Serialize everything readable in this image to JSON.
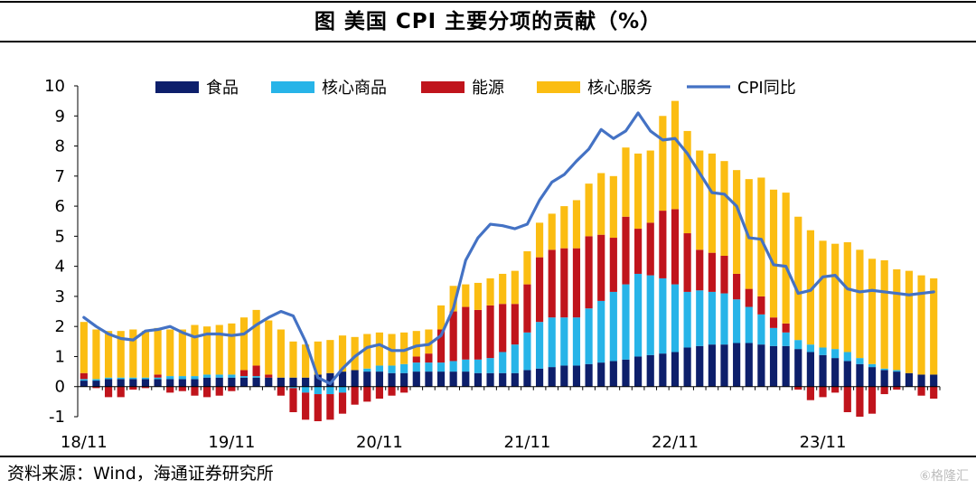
{
  "title": "图  美国 CPI 主要分项的贡献（%）",
  "source": "资料来源：Wind，海通证券研究所",
  "watermark": "⑥格隆汇",
  "colors": {
    "food": "#0d1f6b",
    "core_goods": "#27b4e8",
    "energy": "#c0141c",
    "core_services": "#fbbd12",
    "cpi": "#4472c4"
  },
  "chart_data": {
    "type": "bar",
    "stacked": true,
    "ylim": [
      -1,
      10
    ],
    "yticks": [
      "-1",
      "0",
      "1",
      "2",
      "3",
      "4",
      "5",
      "6",
      "7",
      "8",
      "9",
      "10"
    ],
    "x_tick_labels": [
      {
        "index": 0,
        "label": "18/11"
      },
      {
        "index": 12,
        "label": "19/11"
      },
      {
        "index": 24,
        "label": "20/11"
      },
      {
        "index": 36,
        "label": "21/11"
      },
      {
        "index": 48,
        "label": "22/11"
      },
      {
        "index": 60,
        "label": "23/11"
      }
    ],
    "legend_position": "top",
    "grid": false,
    "series": [
      {
        "name": "食品",
        "key": "food",
        "kind": "bar",
        "values": [
          0.2,
          0.2,
          0.25,
          0.25,
          0.25,
          0.25,
          0.25,
          0.25,
          0.25,
          0.25,
          0.3,
          0.3,
          0.3,
          0.3,
          0.3,
          0.3,
          0.3,
          0.3,
          0.3,
          0.4,
          0.45,
          0.5,
          0.55,
          0.5,
          0.5,
          0.45,
          0.45,
          0.5,
          0.5,
          0.5,
          0.5,
          0.5,
          0.45,
          0.45,
          0.45,
          0.45,
          0.55,
          0.6,
          0.65,
          0.7,
          0.7,
          0.75,
          0.8,
          0.85,
          0.9,
          1.0,
          1.05,
          1.1,
          1.15,
          1.3,
          1.35,
          1.4,
          1.4,
          1.45,
          1.45,
          1.4,
          1.35,
          1.35,
          1.25,
          1.15,
          1.05,
          0.95,
          0.85,
          0.75,
          0.65,
          0.55,
          0.5,
          0.45,
          0.4,
          0.4
        ]
      },
      {
        "name": "核心商品",
        "key": "core_goods",
        "kind": "bar",
        "values": [
          0.05,
          0.05,
          0.05,
          0.05,
          0.05,
          0.05,
          0.05,
          0.1,
          0.1,
          0.1,
          0.1,
          0.1,
          0.1,
          0.05,
          0.05,
          0.0,
          0.0,
          -0.05,
          -0.2,
          -0.25,
          -0.25,
          -0.2,
          0.0,
          0.1,
          0.2,
          0.25,
          0.3,
          0.3,
          0.3,
          0.3,
          0.35,
          0.4,
          0.45,
          0.5,
          0.7,
          0.95,
          1.25,
          1.55,
          1.65,
          1.6,
          1.6,
          1.85,
          2.05,
          2.3,
          2.5,
          2.75,
          2.65,
          2.5,
          2.25,
          1.85,
          1.85,
          1.75,
          1.7,
          1.45,
          1.2,
          1.0,
          0.6,
          0.45,
          0.3,
          0.25,
          0.25,
          0.3,
          0.3,
          0.2,
          0.1,
          0.05,
          0.05,
          0.0,
          0.0,
          0.0
        ]
      },
      {
        "name": "能源",
        "key": "energy",
        "kind": "bar",
        "values": [
          0.2,
          -0.05,
          -0.35,
          -0.35,
          -0.1,
          -0.05,
          0.1,
          -0.2,
          -0.15,
          -0.3,
          -0.35,
          -0.3,
          -0.15,
          0.2,
          0.35,
          0.1,
          -0.3,
          -0.8,
          -0.9,
          -0.9,
          -0.85,
          -0.7,
          -0.6,
          -0.5,
          -0.4,
          -0.3,
          -0.2,
          0.2,
          0.3,
          1.1,
          1.65,
          1.75,
          1.65,
          1.75,
          1.6,
          1.35,
          1.6,
          2.15,
          2.25,
          2.3,
          2.3,
          2.4,
          2.2,
          1.8,
          2.25,
          1.5,
          1.75,
          2.25,
          2.5,
          1.95,
          1.35,
          1.3,
          1.25,
          0.85,
          0.6,
          0.6,
          0.35,
          0.3,
          -0.1,
          -0.45,
          -0.35,
          -0.2,
          -0.85,
          -1.0,
          -0.9,
          -0.25,
          -0.1,
          0.0,
          -0.3,
          -0.4
        ]
      },
      {
        "name": "核心服务",
        "key": "core_services",
        "kind": "bar",
        "values": [
          1.7,
          1.65,
          1.55,
          1.55,
          1.6,
          1.55,
          1.55,
          1.55,
          1.55,
          1.7,
          1.6,
          1.65,
          1.7,
          1.75,
          1.85,
          1.8,
          1.6,
          1.2,
          1.1,
          1.1,
          1.1,
          1.2,
          1.1,
          1.15,
          1.1,
          1.05,
          1.05,
          0.85,
          0.8,
          0.8,
          0.85,
          0.75,
          0.9,
          0.9,
          1.0,
          1.1,
          1.1,
          1.15,
          1.2,
          1.4,
          1.6,
          1.75,
          2.05,
          2.05,
          2.3,
          2.5,
          2.4,
          3.15,
          3.6,
          3.4,
          3.3,
          3.3,
          3.15,
          3.45,
          3.65,
          3.95,
          4.25,
          4.35,
          4.1,
          3.8,
          3.55,
          3.5,
          3.65,
          3.6,
          3.5,
          3.6,
          3.35,
          3.4,
          3.3,
          3.2
        ]
      },
      {
        "name": "CPI同比",
        "key": "cpi",
        "kind": "line",
        "values": [
          2.3,
          2.0,
          1.75,
          1.6,
          1.55,
          1.85,
          1.9,
          2.0,
          1.8,
          1.65,
          1.75,
          1.75,
          1.7,
          1.75,
          2.05,
          2.3,
          2.5,
          2.35,
          1.5,
          0.3,
          0.1,
          0.6,
          1.0,
          1.3,
          1.4,
          1.2,
          1.2,
          1.35,
          1.4,
          1.7,
          2.6,
          4.2,
          4.95,
          5.4,
          5.35,
          5.25,
          5.4,
          6.2,
          6.8,
          7.05,
          7.5,
          7.9,
          8.55,
          8.25,
          8.5,
          9.1,
          8.5,
          8.2,
          8.25,
          7.75,
          7.1,
          6.45,
          6.4,
          6.0,
          4.95,
          4.9,
          4.05,
          4.0,
          3.1,
          3.2,
          3.65,
          3.7,
          3.25,
          3.15,
          3.2,
          3.15,
          3.1,
          3.05,
          3.1,
          3.15
        ]
      }
    ]
  }
}
